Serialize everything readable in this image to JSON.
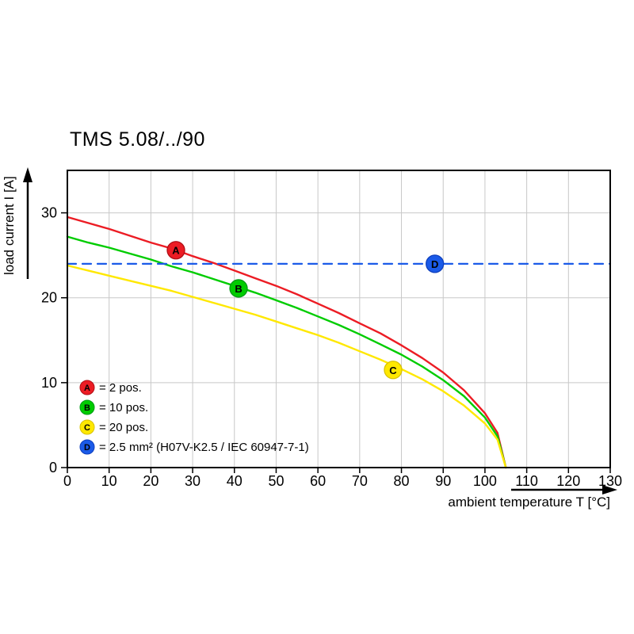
{
  "chart_data": {
    "type": "line",
    "title": "TMS 5.08/../90",
    "xlabel": "ambient temperature T [°C]",
    "ylabel": "load current I [A]",
    "xlim": [
      0,
      130
    ],
    "ylim": [
      0,
      35
    ],
    "xticks": [
      0,
      10,
      20,
      30,
      40,
      50,
      60,
      70,
      80,
      90,
      100,
      110,
      120,
      130
    ],
    "yticks": [
      0,
      10,
      20,
      30
    ],
    "grid": true,
    "legend_position": "lower-left-inside",
    "colors": {
      "grid": "#c8c8c8",
      "frame": "#000000",
      "marker_letter": "#ffffff"
    },
    "series": [
      {
        "name": "A",
        "legend_label": "= 2 pos.",
        "color": "#ec1c24",
        "edge": "#b00f16",
        "line_style": "solid",
        "marker_at": [
          26,
          25.6
        ],
        "points": [
          [
            0,
            29.5
          ],
          [
            5,
            28.8
          ],
          [
            10,
            28.1
          ],
          [
            15,
            27.3
          ],
          [
            20,
            26.5
          ],
          [
            25,
            25.8
          ],
          [
            30,
            24.9
          ],
          [
            35,
            24.1
          ],
          [
            40,
            23.2
          ],
          [
            45,
            22.3
          ],
          [
            50,
            21.4
          ],
          [
            55,
            20.4
          ],
          [
            60,
            19.3
          ],
          [
            65,
            18.2
          ],
          [
            70,
            17.0
          ],
          [
            75,
            15.8
          ],
          [
            80,
            14.4
          ],
          [
            85,
            12.9
          ],
          [
            90,
            11.2
          ],
          [
            95,
            9.1
          ],
          [
            100,
            6.4
          ],
          [
            103,
            4.1
          ],
          [
            105,
            0
          ]
        ]
      },
      {
        "name": "B",
        "legend_label": "= 10 pos.",
        "color": "#00cc00",
        "edge": "#009a14",
        "line_style": "solid",
        "marker_at": [
          41,
          21.1
        ],
        "points": [
          [
            0,
            27.2
          ],
          [
            5,
            26.5
          ],
          [
            10,
            25.9
          ],
          [
            15,
            25.2
          ],
          [
            20,
            24.5
          ],
          [
            25,
            23.7
          ],
          [
            30,
            23.0
          ],
          [
            35,
            22.2
          ],
          [
            40,
            21.4
          ],
          [
            45,
            20.6
          ],
          [
            50,
            19.7
          ],
          [
            55,
            18.8
          ],
          [
            60,
            17.8
          ],
          [
            65,
            16.8
          ],
          [
            70,
            15.7
          ],
          [
            75,
            14.5
          ],
          [
            80,
            13.3
          ],
          [
            85,
            11.9
          ],
          [
            90,
            10.3
          ],
          [
            95,
            8.4
          ],
          [
            100,
            5.9
          ],
          [
            103,
            3.7
          ],
          [
            105,
            0
          ]
        ]
      },
      {
        "name": "C",
        "legend_label": "= 20 pos.",
        "color": "#ffe800",
        "edge": "#d8c200",
        "line_style": "solid",
        "marker_at": [
          78,
          11.5
        ],
        "points": [
          [
            0,
            23.8
          ],
          [
            5,
            23.2
          ],
          [
            10,
            22.6
          ],
          [
            15,
            22.0
          ],
          [
            20,
            21.4
          ],
          [
            25,
            20.8
          ],
          [
            30,
            20.1
          ],
          [
            35,
            19.4
          ],
          [
            40,
            18.7
          ],
          [
            45,
            18.0
          ],
          [
            50,
            17.2
          ],
          [
            55,
            16.4
          ],
          [
            60,
            15.6
          ],
          [
            65,
            14.7
          ],
          [
            70,
            13.7
          ],
          [
            75,
            12.7
          ],
          [
            80,
            11.6
          ],
          [
            85,
            10.4
          ],
          [
            90,
            9.0
          ],
          [
            95,
            7.3
          ],
          [
            100,
            5.2
          ],
          [
            103,
            3.3
          ],
          [
            105,
            0
          ]
        ]
      },
      {
        "name": "D",
        "legend_label": "= 2.5 mm² (H07V-K2.5 / IEC 60947-7-1)",
        "color": "#1a5ae8",
        "edge": "#0e3fbd",
        "line_style": "dashed",
        "marker_at": [
          88,
          24
        ],
        "points": [
          [
            0,
            24
          ],
          [
            130,
            24
          ]
        ]
      }
    ]
  }
}
